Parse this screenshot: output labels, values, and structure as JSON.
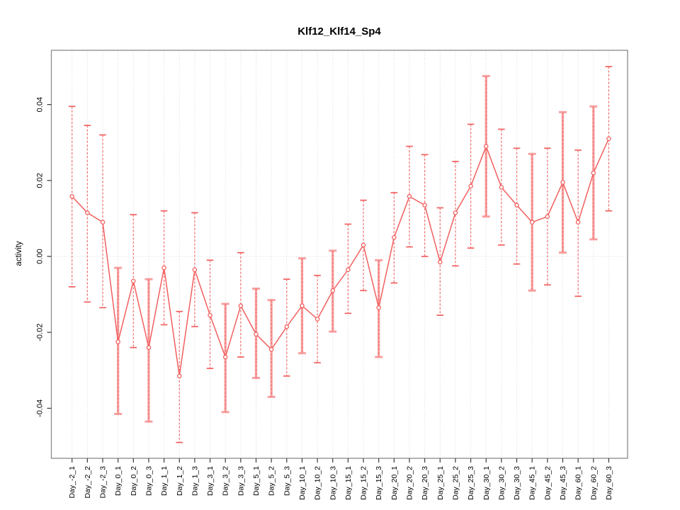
{
  "chart_data": {
    "type": "line",
    "subtype": "points-with-error-bars",
    "title": "Klf12_Klf14_Sp4",
    "xlabel": "",
    "ylabel": "activity",
    "legend": "none",
    "grid": {
      "vertical_dotted_per_category": true,
      "horizontal_dotted_zero_line": true
    },
    "ylim": [
      -0.053,
      0.054
    ],
    "yticks": [
      0.04,
      0.02,
      0.0,
      -0.02,
      -0.04
    ],
    "ytick_labels": [
      "0.04",
      "0.02",
      "0.00",
      "-0.02",
      "-0.04"
    ],
    "categories": [
      "Day_-2_1",
      "Day_-2_2",
      "Day_-2_3",
      "Day_0_1",
      "Day_0_2",
      "Day_0_3",
      "Day_1_1",
      "Day_1_2",
      "Day_1_3",
      "Day_3_1",
      "Day_3_2",
      "Day_3_3",
      "Day_5_1",
      "Day_5_2",
      "Day_5_3",
      "Day_10_1",
      "Day_10_2",
      "Day_10_3",
      "Day_15_1",
      "Day_15_2",
      "Day_15_3",
      "Day_20_1",
      "Day_20_2",
      "Day_20_3",
      "Day_25_1",
      "Day_25_2",
      "Day_25_3",
      "Day_30_1",
      "Day_30_2",
      "Day_30_3",
      "Day_45_1",
      "Day_45_2",
      "Day_45_3",
      "Day_60_1",
      "Day_60_2",
      "Day_60_3"
    ],
    "series": [
      {
        "name": "activity",
        "values": [
          0.0158,
          0.0115,
          0.009,
          -0.0225,
          -0.0065,
          -0.024,
          -0.003,
          -0.0315,
          -0.0035,
          -0.0155,
          -0.0265,
          -0.013,
          -0.0205,
          -0.0245,
          -0.0185,
          -0.013,
          -0.0165,
          -0.009,
          -0.0035,
          0.003,
          -0.0135,
          0.005,
          0.0158,
          0.0135,
          -0.0015,
          0.0115,
          0.0185,
          0.029,
          0.0182,
          0.0135,
          0.009,
          0.0105,
          0.0195,
          0.009,
          0.022,
          0.031
        ],
        "upper": [
          0.0395,
          0.0345,
          0.032,
          -0.003,
          0.011,
          -0.006,
          0.012,
          -0.0145,
          0.0115,
          -0.001,
          -0.0125,
          0.001,
          -0.0085,
          -0.0115,
          -0.006,
          -0.0005,
          -0.005,
          0.0015,
          0.0085,
          0.0148,
          -0.001,
          0.0168,
          0.029,
          0.0268,
          0.0128,
          0.025,
          0.0348,
          0.0475,
          0.0335,
          0.0285,
          0.027,
          0.0285,
          0.038,
          0.028,
          0.0395,
          0.05
        ],
        "lower": [
          -0.008,
          -0.012,
          -0.0135,
          -0.0415,
          -0.024,
          -0.0435,
          -0.018,
          -0.049,
          -0.0185,
          -0.0295,
          -0.041,
          -0.0265,
          -0.032,
          -0.037,
          -0.0315,
          -0.0255,
          -0.028,
          -0.0198,
          -0.015,
          -0.009,
          -0.0265,
          -0.007,
          0.0025,
          0.0,
          -0.0155,
          -0.0025,
          0.0022,
          0.0105,
          0.003,
          -0.002,
          -0.009,
          -0.0075,
          0.001,
          -0.0105,
          0.0045,
          0.012
        ]
      }
    ],
    "thick_bar_indices": [
      3,
      5,
      10,
      12,
      13,
      15,
      17,
      20,
      27,
      30,
      32,
      34
    ],
    "colors": {
      "point": "#f25f5f",
      "line": "#f25f5f",
      "error_bar_thin": "#f25f5f",
      "error_bar_thick": "#f79b9b",
      "gridline": "#d4d4d4",
      "plot_border": "#8a8a8a",
      "tick": "#3a3a3a",
      "text": "#000000",
      "background": "#ffffff"
    }
  }
}
